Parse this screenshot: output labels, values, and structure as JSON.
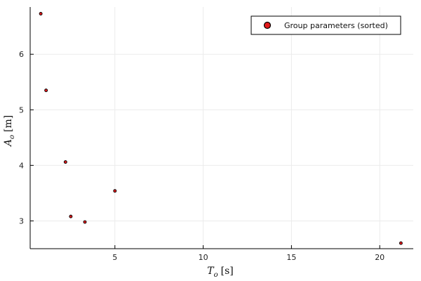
{
  "chart_data": {
    "type": "scatter",
    "title": "",
    "xlabel": "T_o [s]",
    "ylabel": "A_o [m]",
    "xlim": [
      0.2,
      21.9
    ],
    "ylim": [
      2.5,
      6.85
    ],
    "xticks": [
      5,
      10,
      15,
      20
    ],
    "yticks": [
      3,
      4,
      5,
      6
    ],
    "xtick_labels": [
      "5",
      "10",
      "15",
      "20"
    ],
    "ytick_labels": [
      "3",
      "4",
      "5",
      "6"
    ],
    "grid": true,
    "legend_position": "top-right",
    "series": [
      {
        "name": "Group parameters (sorted)",
        "color": "#e41a1c",
        "edge_color": "#000000",
        "points": [
          {
            "x": 0.8,
            "y": 6.73
          },
          {
            "x": 1.1,
            "y": 5.35
          },
          {
            "x": 2.2,
            "y": 4.06
          },
          {
            "x": 2.5,
            "y": 3.08
          },
          {
            "x": 3.3,
            "y": 2.98
          },
          {
            "x": 5.0,
            "y": 3.54
          },
          {
            "x": 21.2,
            "y": 2.6
          }
        ]
      }
    ]
  },
  "legend": {
    "label": "Group parameters (sorted)"
  },
  "axes": {
    "xlabel_main": "T",
    "xlabel_sub": "o",
    "xlabel_unit": "[s]",
    "ylabel_main": "A",
    "ylabel_sub": "o",
    "ylabel_unit": "[m]"
  }
}
